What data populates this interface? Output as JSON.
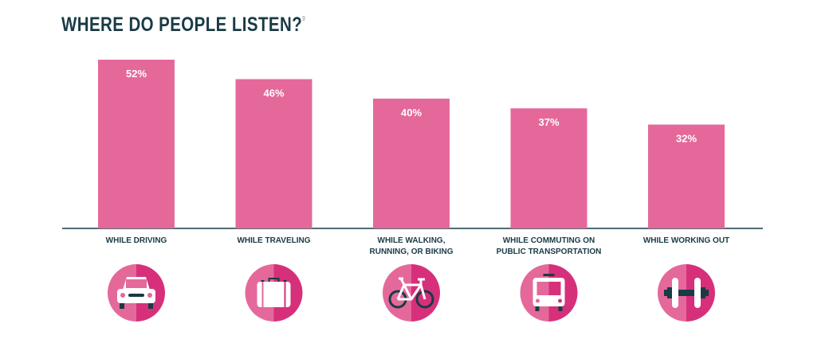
{
  "chart_data": {
    "type": "bar",
    "title": "WHERE DO PEOPLE LISTEN?",
    "title_footnote": "9",
    "categories": [
      [
        "WHILE DRIVING"
      ],
      [
        "WHILE TRAVELING"
      ],
      [
        "WHILE WALKING,",
        "RUNNING, OR BIKING"
      ],
      [
        "WHILE COMMUTING ON",
        "PUBLIC TRANSPORTATION"
      ],
      [
        "WHILE WORKING OUT"
      ]
    ],
    "values": [
      52,
      46,
      40,
      37,
      32
    ],
    "value_labels": [
      "52%",
      "46%",
      "40%",
      "37%",
      "32%"
    ],
    "unit": "%",
    "ylim": [
      0,
      52
    ],
    "grid": false,
    "icons": [
      "car-icon",
      "suitcase-icon",
      "bicycle-icon",
      "bus-icon",
      "dumbbell-icon"
    ],
    "colors": {
      "bar": "#e4699a",
      "icon_dark": "#d6307b",
      "icon_light": "#e4699a",
      "text": "#183b45"
    }
  }
}
